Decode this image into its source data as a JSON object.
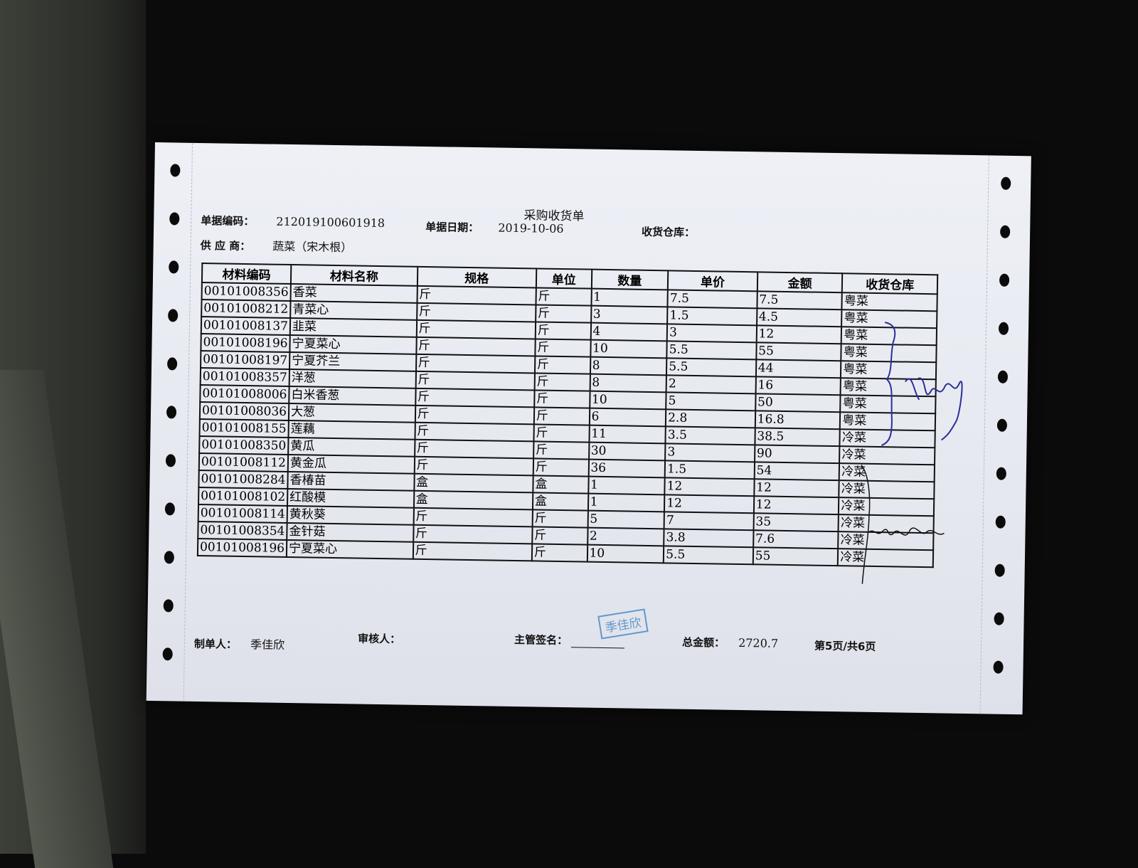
{
  "document": {
    "title": "采购收货单",
    "doc_no_label": "单据编码：",
    "doc_no": "212019100601918",
    "date_label": "单据日期：",
    "date": "2019-10-06",
    "warehouse_label": "收货仓库：",
    "supplier_label": "供 应 商：",
    "supplier": "蔬菜（宋木根）"
  },
  "table": {
    "headers": [
      "材料编码",
      "材料名称",
      "规格",
      "单位",
      "数量",
      "单价",
      "金额",
      "收货仓库"
    ],
    "rows": [
      [
        "00101008356",
        "香菜",
        "斤",
        "斤",
        "1",
        "7.5",
        "7.5",
        "粤菜"
      ],
      [
        "00101008212",
        "青菜心",
        "斤",
        "斤",
        "3",
        "1.5",
        "4.5",
        "粤菜"
      ],
      [
        "00101008137",
        "韭菜",
        "斤",
        "斤",
        "4",
        "3",
        "12",
        "粤菜"
      ],
      [
        "00101008196",
        "宁夏菜心",
        "斤",
        "斤",
        "10",
        "5.5",
        "55",
        "粤菜"
      ],
      [
        "00101008197",
        "宁夏芥兰",
        "斤",
        "斤",
        "8",
        "5.5",
        "44",
        "粤菜"
      ],
      [
        "00101008357",
        "洋葱",
        "斤",
        "斤",
        "8",
        "2",
        "16",
        "粤菜"
      ],
      [
        "00101008006",
        "白米香葱",
        "斤",
        "斤",
        "10",
        "5",
        "50",
        "粤菜"
      ],
      [
        "00101008036",
        "大葱",
        "斤",
        "斤",
        "6",
        "2.8",
        "16.8",
        "粤菜"
      ],
      [
        "00101008155",
        "莲藕",
        "斤",
        "斤",
        "11",
        "3.5",
        "38.5",
        "冷菜"
      ],
      [
        "00101008350",
        "黄瓜",
        "斤",
        "斤",
        "30",
        "3",
        "90",
        "冷菜"
      ],
      [
        "00101008112",
        "黄金瓜",
        "斤",
        "斤",
        "36",
        "1.5",
        "54",
        "冷菜"
      ],
      [
        "00101008284",
        "香椿苗",
        "盒",
        "盒",
        "1",
        "12",
        "12",
        "冷菜"
      ],
      [
        "00101008102",
        "红酸模",
        "盒",
        "盒",
        "1",
        "12",
        "12",
        "冷菜"
      ],
      [
        "00101008114",
        "黄秋葵",
        "斤",
        "斤",
        "5",
        "7",
        "35",
        "冷菜"
      ],
      [
        "00101008354",
        "金针菇",
        "斤",
        "斤",
        "2",
        "3.8",
        "7.6",
        "冷菜"
      ],
      [
        "00101008196",
        "宁夏菜心",
        "斤",
        "斤",
        "10",
        "5.5",
        "55",
        "冷菜"
      ]
    ]
  },
  "footer": {
    "maker_label": "制单人：",
    "maker": "季佳欣",
    "reviewer_label": "审核人：",
    "supervisor_label": "主管签名：",
    "total_label": "总金额：",
    "total": "2720.7",
    "page": "第5页/共6页"
  },
  "stamp": "季佳欣",
  "colors": {
    "ink_blue": "#2a2f9a",
    "stamp_blue": "#4a8cc8",
    "background": "#0b0b0c"
  }
}
